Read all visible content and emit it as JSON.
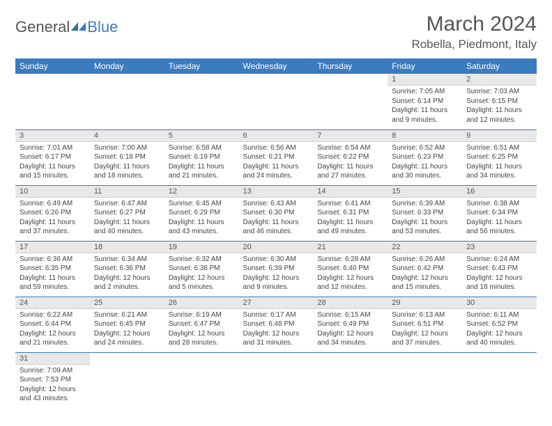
{
  "logo": {
    "text_general": "General",
    "text_blue": "Blue"
  },
  "title": {
    "month_year": "March 2024",
    "location": "Robella, Piedmont, Italy"
  },
  "colors": {
    "header_bg": "#3b7bbf",
    "header_text": "#ffffff",
    "daynum_bg": "#e8e8e8",
    "cell_border": "#3b7bbf",
    "text": "#444444",
    "logo_blue": "#3b7bbf"
  },
  "weekdays": [
    "Sunday",
    "Monday",
    "Tuesday",
    "Wednesday",
    "Thursday",
    "Friday",
    "Saturday"
  ],
  "weeks": [
    [
      null,
      null,
      null,
      null,
      null,
      {
        "n": "1",
        "sr": "Sunrise: 7:05 AM",
        "ss": "Sunset: 6:14 PM",
        "dl": "Daylight: 11 hours and 9 minutes."
      },
      {
        "n": "2",
        "sr": "Sunrise: 7:03 AM",
        "ss": "Sunset: 6:15 PM",
        "dl": "Daylight: 11 hours and 12 minutes."
      }
    ],
    [
      {
        "n": "3",
        "sr": "Sunrise: 7:01 AM",
        "ss": "Sunset: 6:17 PM",
        "dl": "Daylight: 11 hours and 15 minutes."
      },
      {
        "n": "4",
        "sr": "Sunrise: 7:00 AM",
        "ss": "Sunset: 6:18 PM",
        "dl": "Daylight: 11 hours and 18 minutes."
      },
      {
        "n": "5",
        "sr": "Sunrise: 6:58 AM",
        "ss": "Sunset: 6:19 PM",
        "dl": "Daylight: 11 hours and 21 minutes."
      },
      {
        "n": "6",
        "sr": "Sunrise: 6:56 AM",
        "ss": "Sunset: 6:21 PM",
        "dl": "Daylight: 11 hours and 24 minutes."
      },
      {
        "n": "7",
        "sr": "Sunrise: 6:54 AM",
        "ss": "Sunset: 6:22 PM",
        "dl": "Daylight: 11 hours and 27 minutes."
      },
      {
        "n": "8",
        "sr": "Sunrise: 6:52 AM",
        "ss": "Sunset: 6:23 PM",
        "dl": "Daylight: 11 hours and 30 minutes."
      },
      {
        "n": "9",
        "sr": "Sunrise: 6:51 AM",
        "ss": "Sunset: 6:25 PM",
        "dl": "Daylight: 11 hours and 34 minutes."
      }
    ],
    [
      {
        "n": "10",
        "sr": "Sunrise: 6:49 AM",
        "ss": "Sunset: 6:26 PM",
        "dl": "Daylight: 11 hours and 37 minutes."
      },
      {
        "n": "11",
        "sr": "Sunrise: 6:47 AM",
        "ss": "Sunset: 6:27 PM",
        "dl": "Daylight: 11 hours and 40 minutes."
      },
      {
        "n": "12",
        "sr": "Sunrise: 6:45 AM",
        "ss": "Sunset: 6:29 PM",
        "dl": "Daylight: 11 hours and 43 minutes."
      },
      {
        "n": "13",
        "sr": "Sunrise: 6:43 AM",
        "ss": "Sunset: 6:30 PM",
        "dl": "Daylight: 11 hours and 46 minutes."
      },
      {
        "n": "14",
        "sr": "Sunrise: 6:41 AM",
        "ss": "Sunset: 6:31 PM",
        "dl": "Daylight: 11 hours and 49 minutes."
      },
      {
        "n": "15",
        "sr": "Sunrise: 6:39 AM",
        "ss": "Sunset: 6:33 PM",
        "dl": "Daylight: 11 hours and 53 minutes."
      },
      {
        "n": "16",
        "sr": "Sunrise: 6:38 AM",
        "ss": "Sunset: 6:34 PM",
        "dl": "Daylight: 11 hours and 56 minutes."
      }
    ],
    [
      {
        "n": "17",
        "sr": "Sunrise: 6:36 AM",
        "ss": "Sunset: 6:35 PM",
        "dl": "Daylight: 11 hours and 59 minutes."
      },
      {
        "n": "18",
        "sr": "Sunrise: 6:34 AM",
        "ss": "Sunset: 6:36 PM",
        "dl": "Daylight: 12 hours and 2 minutes."
      },
      {
        "n": "19",
        "sr": "Sunrise: 6:32 AM",
        "ss": "Sunset: 6:38 PM",
        "dl": "Daylight: 12 hours and 5 minutes."
      },
      {
        "n": "20",
        "sr": "Sunrise: 6:30 AM",
        "ss": "Sunset: 6:39 PM",
        "dl": "Daylight: 12 hours and 9 minutes."
      },
      {
        "n": "21",
        "sr": "Sunrise: 6:28 AM",
        "ss": "Sunset: 6:40 PM",
        "dl": "Daylight: 12 hours and 12 minutes."
      },
      {
        "n": "22",
        "sr": "Sunrise: 6:26 AM",
        "ss": "Sunset: 6:42 PM",
        "dl": "Daylight: 12 hours and 15 minutes."
      },
      {
        "n": "23",
        "sr": "Sunrise: 6:24 AM",
        "ss": "Sunset: 6:43 PM",
        "dl": "Daylight: 12 hours and 18 minutes."
      }
    ],
    [
      {
        "n": "24",
        "sr": "Sunrise: 6:22 AM",
        "ss": "Sunset: 6:44 PM",
        "dl": "Daylight: 12 hours and 21 minutes."
      },
      {
        "n": "25",
        "sr": "Sunrise: 6:21 AM",
        "ss": "Sunset: 6:45 PM",
        "dl": "Daylight: 12 hours and 24 minutes."
      },
      {
        "n": "26",
        "sr": "Sunrise: 6:19 AM",
        "ss": "Sunset: 6:47 PM",
        "dl": "Daylight: 12 hours and 28 minutes."
      },
      {
        "n": "27",
        "sr": "Sunrise: 6:17 AM",
        "ss": "Sunset: 6:48 PM",
        "dl": "Daylight: 12 hours and 31 minutes."
      },
      {
        "n": "28",
        "sr": "Sunrise: 6:15 AM",
        "ss": "Sunset: 6:49 PM",
        "dl": "Daylight: 12 hours and 34 minutes."
      },
      {
        "n": "29",
        "sr": "Sunrise: 6:13 AM",
        "ss": "Sunset: 6:51 PM",
        "dl": "Daylight: 12 hours and 37 minutes."
      },
      {
        "n": "30",
        "sr": "Sunrise: 6:11 AM",
        "ss": "Sunset: 6:52 PM",
        "dl": "Daylight: 12 hours and 40 minutes."
      }
    ],
    [
      {
        "n": "31",
        "sr": "Sunrise: 7:09 AM",
        "ss": "Sunset: 7:53 PM",
        "dl": "Daylight: 12 hours and 43 minutes."
      },
      null,
      null,
      null,
      null,
      null,
      null
    ]
  ]
}
